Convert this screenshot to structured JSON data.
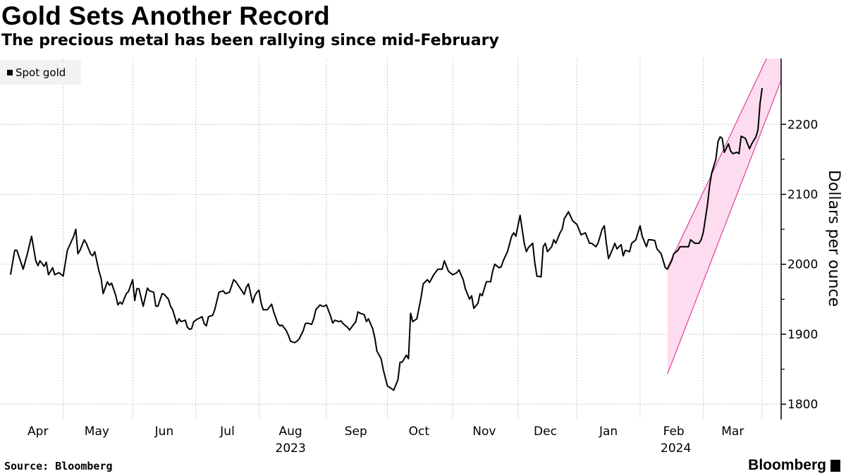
{
  "chart_data": {
    "type": "line",
    "title": "Gold Sets Another Record",
    "subtitle": "The precious metal has been rallying since mid-February",
    "ylabel": "Dollars per ounce",
    "xlabel": "",
    "x_unit": "approx. days from 2023-04-01",
    "xlim": [
      0,
      371
    ],
    "ylim": [
      1778,
      2294
    ],
    "yticks": [
      1800,
      1900,
      2000,
      2100,
      2200
    ],
    "y_minor": [
      1850,
      1950,
      2050,
      2150
    ],
    "month_gridlines": [
      30,
      63,
      93,
      123,
      155,
      184,
      215,
      246,
      274,
      304,
      334,
      362
    ],
    "month_labels": [
      {
        "label": "Apr",
        "x": 18
      },
      {
        "label": "May",
        "x": 46
      },
      {
        "label": "Jun",
        "x": 78
      },
      {
        "label": "Jul",
        "x": 108
      },
      {
        "label": "Aug",
        "x": 138,
        "year": "2023"
      },
      {
        "label": "Sep",
        "x": 169
      },
      {
        "label": "Oct",
        "x": 199
      },
      {
        "label": "Nov",
        "x": 230
      },
      {
        "label": "Dec",
        "x": 259
      },
      {
        "label": "Jan",
        "x": 289
      },
      {
        "label": "Feb",
        "x": 320,
        "year": "2024"
      },
      {
        "label": "Mar",
        "x": 348
      }
    ],
    "grid": true,
    "legend": {
      "position": "top-left",
      "entries": [
        "Spot gold"
      ]
    },
    "channel": {
      "color": "#e0409a",
      "fill": "#fddcef",
      "upper": [
        [
          317,
          1995
        ],
        [
          371,
          2338
        ]
      ],
      "lower": [
        [
          317,
          1843
        ],
        [
          371,
          2263
        ]
      ]
    },
    "series": [
      {
        "name": "Spot gold",
        "color": "#000000",
        "points": [
          [
            5,
            1985
          ],
          [
            7,
            2020
          ],
          [
            8,
            2020
          ],
          [
            11,
            1993
          ],
          [
            13,
            2015
          ],
          [
            15,
            2040
          ],
          [
            17,
            2005
          ],
          [
            18,
            1998
          ],
          [
            19,
            2005
          ],
          [
            21,
            1997
          ],
          [
            22,
            2003
          ],
          [
            23,
            1985
          ],
          [
            25,
            1995
          ],
          [
            26,
            1985
          ],
          [
            28,
            1988
          ],
          [
            30,
            1983
          ],
          [
            32,
            2020
          ],
          [
            35,
            2040
          ],
          [
            36,
            2050
          ],
          [
            37,
            2015
          ],
          [
            38,
            2020
          ],
          [
            40,
            2035
          ],
          [
            41,
            2030
          ],
          [
            43,
            2015
          ],
          [
            44,
            2012
          ],
          [
            45,
            2018
          ],
          [
            47,
            1990
          ],
          [
            48,
            1980
          ],
          [
            49,
            1958
          ],
          [
            51,
            1975
          ],
          [
            52,
            1970
          ],
          [
            53,
            1973
          ],
          [
            55,
            1955
          ],
          [
            56,
            1942
          ],
          [
            57,
            1946
          ],
          [
            58,
            1943
          ],
          [
            60,
            1958
          ],
          [
            61,
            1961
          ],
          [
            63,
            1978
          ],
          [
            64,
            1948
          ],
          [
            65,
            1965
          ],
          [
            66,
            1965
          ],
          [
            68,
            1940
          ],
          [
            70,
            1966
          ],
          [
            71,
            1962
          ],
          [
            73,
            1960
          ],
          [
            74,
            1940
          ],
          [
            75,
            1940
          ],
          [
            77,
            1958
          ],
          [
            78,
            1957
          ],
          [
            80,
            1950
          ],
          [
            81,
            1940
          ],
          [
            82,
            1935
          ],
          [
            84,
            1915
          ],
          [
            85,
            1922
          ],
          [
            86,
            1918
          ],
          [
            88,
            1920
          ],
          [
            89,
            1910
          ],
          [
            90,
            1907
          ],
          [
            91,
            1908
          ],
          [
            92,
            1918
          ],
          [
            94,
            1922
          ],
          [
            96,
            1925
          ],
          [
            97,
            1915
          ],
          [
            98,
            1912
          ],
          [
            99,
            1925
          ],
          [
            101,
            1927
          ],
          [
            102,
            1935
          ],
          [
            104,
            1960
          ],
          [
            106,
            1962
          ],
          [
            107,
            1958
          ],
          [
            109,
            1960
          ],
          [
            111,
            1978
          ],
          [
            112,
            1975
          ],
          [
            114,
            1966
          ],
          [
            116,
            1957
          ],
          [
            117,
            1967
          ],
          [
            118,
            1972
          ],
          [
            120,
            1945
          ],
          [
            121,
            1955
          ],
          [
            122,
            1960
          ],
          [
            123,
            1963
          ],
          [
            124,
            1945
          ],
          [
            125,
            1935
          ],
          [
            127,
            1935
          ],
          [
            129,
            1943
          ],
          [
            130,
            1932
          ],
          [
            132,
            1915
          ],
          [
            133,
            1912
          ],
          [
            134,
            1913
          ],
          [
            136,
            1905
          ],
          [
            137,
            1898
          ],
          [
            138,
            1890
          ],
          [
            140,
            1888
          ],
          [
            141,
            1890
          ],
          [
            142,
            1893
          ],
          [
            144,
            1905
          ],
          [
            145,
            1915
          ],
          [
            146,
            1916
          ],
          [
            148,
            1914
          ],
          [
            149,
            1922
          ],
          [
            150,
            1935
          ],
          [
            152,
            1942
          ],
          [
            153,
            1940
          ],
          [
            154,
            1940
          ],
          [
            155,
            1942
          ],
          [
            157,
            1926
          ],
          [
            158,
            1916
          ],
          [
            159,
            1920
          ],
          [
            161,
            1918
          ],
          [
            162,
            1919
          ],
          [
            163,
            1915
          ],
          [
            165,
            1910
          ],
          [
            166,
            1906
          ],
          [
            167,
            1910
          ],
          [
            169,
            1918
          ],
          [
            170,
            1932
          ],
          [
            171,
            1930
          ],
          [
            173,
            1928
          ],
          [
            174,
            1918
          ],
          [
            175,
            1922
          ],
          [
            177,
            1908
          ],
          [
            178,
            1895
          ],
          [
            179,
            1876
          ],
          [
            181,
            1865
          ],
          [
            182,
            1850
          ],
          [
            183,
            1838
          ],
          [
            184,
            1826
          ],
          [
            186,
            1822
          ],
          [
            187,
            1820
          ],
          [
            189,
            1835
          ],
          [
            190,
            1860
          ],
          [
            191,
            1860
          ],
          [
            193,
            1870
          ],
          [
            194,
            1865
          ],
          [
            195,
            1930
          ],
          [
            196,
            1918
          ],
          [
            198,
            1922
          ],
          [
            200,
            1953
          ],
          [
            201,
            1972
          ],
          [
            203,
            1978
          ],
          [
            204,
            1974
          ],
          [
            206,
            1985
          ],
          [
            208,
            1993
          ],
          [
            210,
            1993
          ],
          [
            211,
            2005
          ],
          [
            213,
            1990
          ],
          [
            215,
            1985
          ],
          [
            217,
            1988
          ],
          [
            218,
            1992
          ],
          [
            220,
            1978
          ],
          [
            221,
            1965
          ],
          [
            223,
            1950
          ],
          [
            224,
            1955
          ],
          [
            225,
            1937
          ],
          [
            227,
            1944
          ],
          [
            228,
            1958
          ],
          [
            229,
            1955
          ],
          [
            231,
            1975
          ],
          [
            233,
            1975
          ],
          [
            234,
            1990
          ],
          [
            235,
            2000
          ],
          [
            237,
            1995
          ],
          [
            238,
            1996
          ],
          [
            239,
            2005
          ],
          [
            241,
            2018
          ],
          [
            243,
            2040
          ],
          [
            244,
            2045
          ],
          [
            245,
            2040
          ],
          [
            247,
            2070
          ],
          [
            249,
            2030
          ],
          [
            250,
            2018
          ],
          [
            251,
            2024
          ],
          [
            253,
            2030
          ],
          [
            254,
            2002
          ],
          [
            255,
            1983
          ],
          [
            257,
            1982
          ],
          [
            258,
            2025
          ],
          [
            259,
            2030
          ],
          [
            260,
            2018
          ],
          [
            262,
            2025
          ],
          [
            263,
            2035
          ],
          [
            264,
            2030
          ],
          [
            266,
            2045
          ],
          [
            267,
            2050
          ],
          [
            268,
            2065
          ],
          [
            270,
            2075
          ],
          [
            272,
            2062
          ],
          [
            274,
            2057
          ],
          [
            276,
            2042
          ],
          [
            278,
            2045
          ],
          [
            280,
            2030
          ],
          [
            281,
            2030
          ],
          [
            283,
            2025
          ],
          [
            284,
            2030
          ],
          [
            286,
            2050
          ],
          [
            287,
            2055
          ],
          [
            288,
            2030
          ],
          [
            289,
            2008
          ],
          [
            291,
            2022
          ],
          [
            292,
            2030
          ],
          [
            293,
            2022
          ],
          [
            295,
            2028
          ],
          [
            296,
            2012
          ],
          [
            297,
            2020
          ],
          [
            299,
            2018
          ],
          [
            300,
            2030
          ],
          [
            302,
            2035
          ],
          [
            304,
            2055
          ],
          [
            305,
            2040
          ],
          [
            307,
            2025
          ],
          [
            308,
            2035
          ],
          [
            309,
            2035
          ],
          [
            311,
            2034
          ],
          [
            312,
            2022
          ],
          [
            314,
            2015
          ],
          [
            316,
            1995
          ],
          [
            317,
            1993
          ],
          [
            319,
            2005
          ],
          [
            320,
            2015
          ],
          [
            322,
            2020
          ],
          [
            323,
            2025
          ],
          [
            326,
            2025
          ],
          [
            327,
            2025
          ],
          [
            328,
            2035
          ],
          [
            330,
            2030
          ],
          [
            332,
            2030
          ],
          [
            333,
            2035
          ],
          [
            334,
            2045
          ],
          [
            336,
            2085
          ],
          [
            337,
            2112
          ],
          [
            338,
            2130
          ],
          [
            340,
            2150
          ],
          [
            341,
            2175
          ],
          [
            342,
            2182
          ],
          [
            343,
            2180
          ],
          [
            344,
            2160
          ],
          [
            346,
            2172
          ],
          [
            347,
            2162
          ],
          [
            348,
            2158
          ],
          [
            350,
            2160
          ],
          [
            351,
            2158
          ],
          [
            352,
            2183
          ],
          [
            354,
            2180
          ],
          [
            356,
            2165
          ],
          [
            357,
            2172
          ],
          [
            359,
            2182
          ],
          [
            360,
            2192
          ],
          [
            361,
            2230
          ],
          [
            362,
            2252
          ]
        ]
      }
    ]
  },
  "header": {
    "title": "Gold Sets Another Record",
    "subtitle": "The precious metal has been rallying since mid-February"
  },
  "legend": {
    "label": "Spot gold"
  },
  "footer": {
    "source": "Source: Bloomberg",
    "logo": "Bloomberg"
  }
}
